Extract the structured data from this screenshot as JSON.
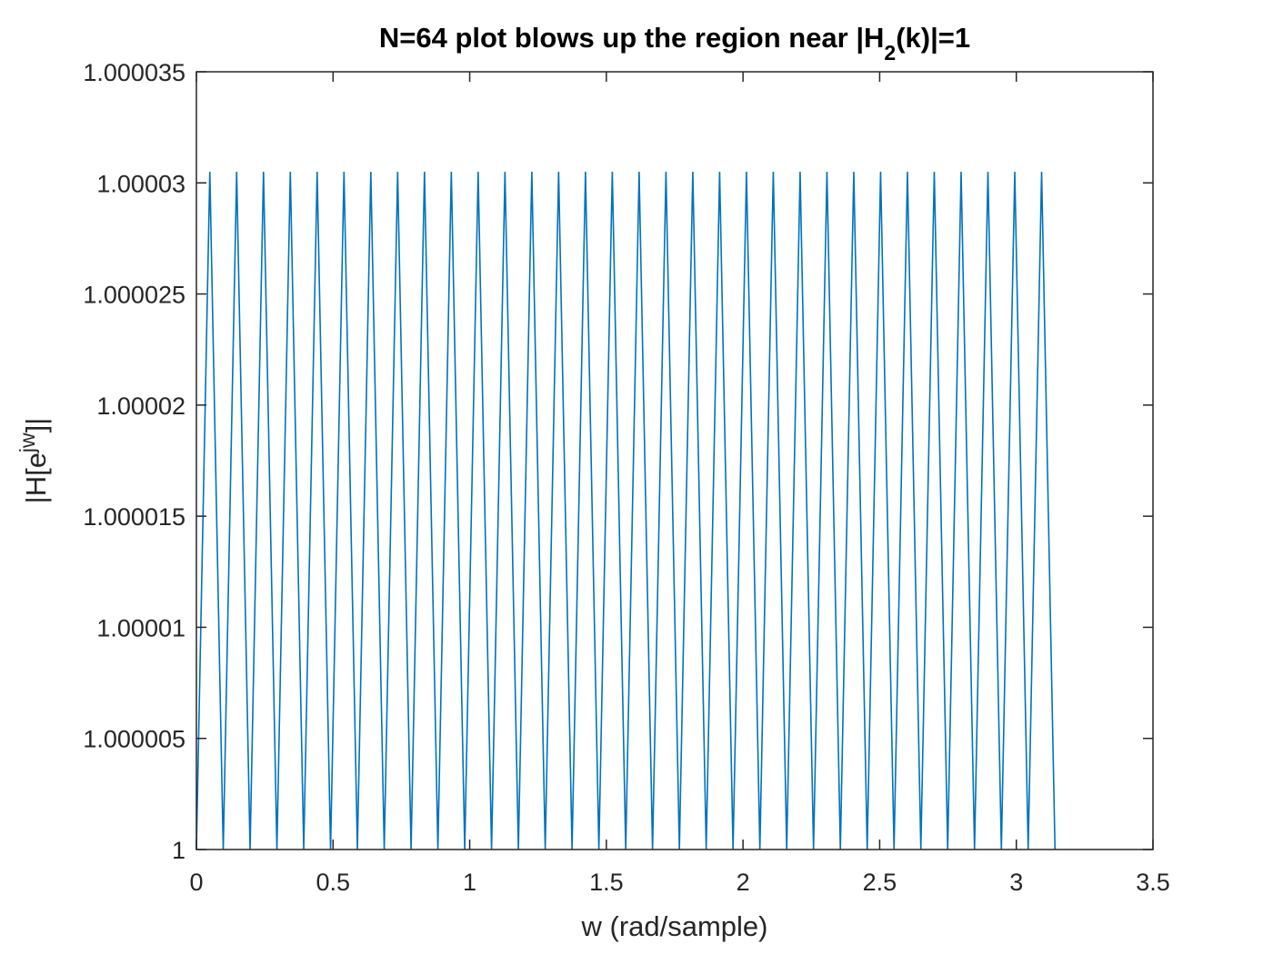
{
  "chart_data": {
    "type": "line",
    "title": {
      "prefix": "N=64 plot blows up the region near |H",
      "subscript": "2",
      "suffix": "(k)|=1"
    },
    "xlabel": "w (rad/sample)",
    "ylabel": {
      "prefix": "|H[e",
      "superscript": "jw",
      "suffix": "]|"
    },
    "xlim": [
      0,
      3.5
    ],
    "ylim": [
      1,
      1.000035
    ],
    "x_ticks": [
      0,
      0.5,
      1,
      1.5,
      2,
      2.5,
      3,
      3.5
    ],
    "x_tick_labels": [
      "0",
      "0.5",
      "1",
      "1.5",
      "2",
      "2.5",
      "3",
      "3.5"
    ],
    "y_ticks": [
      1,
      1.000005,
      1.00001,
      1.000015,
      1.00002,
      1.000025,
      1.00003,
      1.000035
    ],
    "y_tick_labels": [
      "1",
      "1.000005",
      "1.00001",
      "1.000015",
      "1.00002",
      "1.000025",
      "1.00003",
      "1.000035"
    ],
    "grid": false,
    "series": [
      {
        "color": "#0072bd",
        "x_start": 0,
        "x_end": 3.14159,
        "samples": 64,
        "y_low": 1.0,
        "y_high": 1.0000305,
        "pattern": "alternating low/high, starting low, 32 peaks"
      }
    ]
  }
}
